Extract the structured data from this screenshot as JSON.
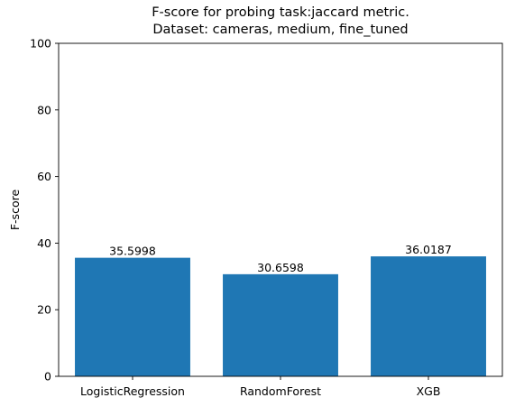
{
  "chart_data": {
    "type": "bar",
    "title": "F-score for probing task:jaccard metric.",
    "subtitle": "Dataset: cameras, medium, fine_tuned",
    "xlabel": "",
    "ylabel": "F-score",
    "categories": [
      "LogisticRegression",
      "RandomForest",
      "XGB"
    ],
    "values": [
      35.5998,
      30.6598,
      36.0187
    ],
    "data_labels": [
      "35.5998",
      "30.6598",
      "36.0187"
    ],
    "ylim": [
      0,
      100
    ],
    "yticks": [
      0,
      20,
      40,
      60,
      80,
      100
    ],
    "ytick_labels": [
      "0",
      "20",
      "40",
      "60",
      "80",
      "100"
    ],
    "grid": false,
    "bar_color": "#1f77b4"
  }
}
